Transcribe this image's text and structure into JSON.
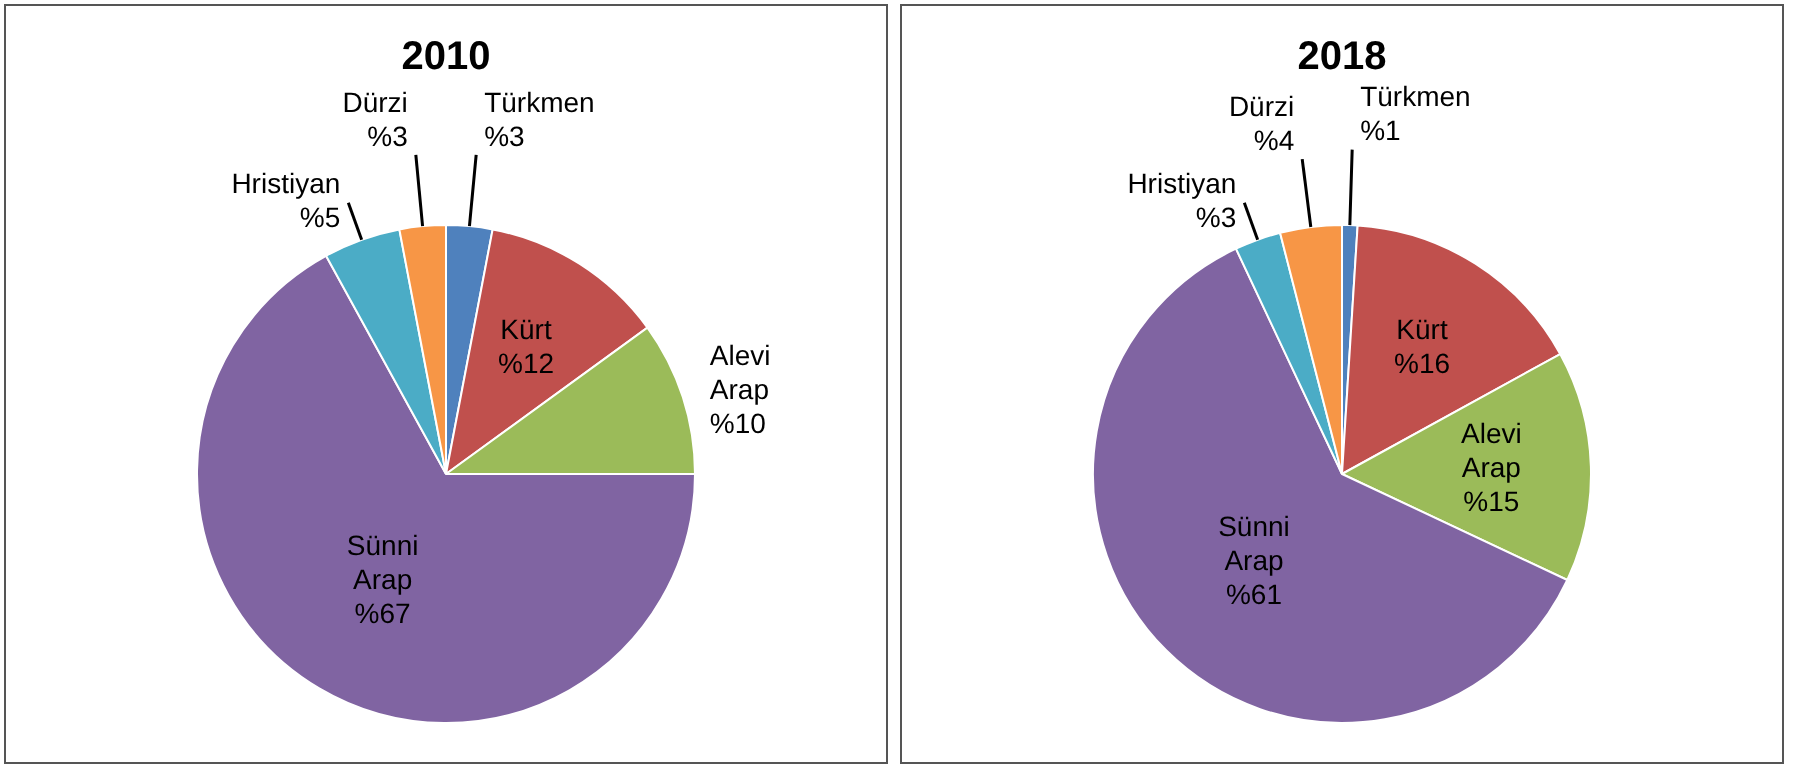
{
  "chart_data": [
    {
      "type": "pie",
      "title": "2010",
      "categories": [
        "Türkmen",
        "Kürt",
        "Alevi Arap",
        "Sünni Arap",
        "Hristiyan",
        "Dürzi"
      ],
      "values": [
        3,
        12,
        10,
        67,
        5,
        3
      ],
      "value_labels": [
        "%3",
        "%12",
        "%10",
        "%67",
        "%5",
        "%3"
      ],
      "colors": [
        "#4f81bd",
        "#c0504d",
        "#9bbb59",
        "#8064a2",
        "#4bacc6",
        "#f79646"
      ],
      "legend": false
    },
    {
      "type": "pie",
      "title": "2018",
      "categories": [
        "Türkmen",
        "Kürt",
        "Alevi Arap",
        "Sünni Arap",
        "Hristiyan",
        "Dürzi"
      ],
      "values": [
        1,
        16,
        15,
        61,
        3,
        4
      ],
      "value_labels": [
        "%1",
        "%16",
        "%15",
        "%61",
        "%3",
        "%4"
      ],
      "colors": [
        "#4f81bd",
        "#c0504d",
        "#9bbb59",
        "#8064a2",
        "#4bacc6",
        "#f79646"
      ],
      "legend": false
    }
  ]
}
